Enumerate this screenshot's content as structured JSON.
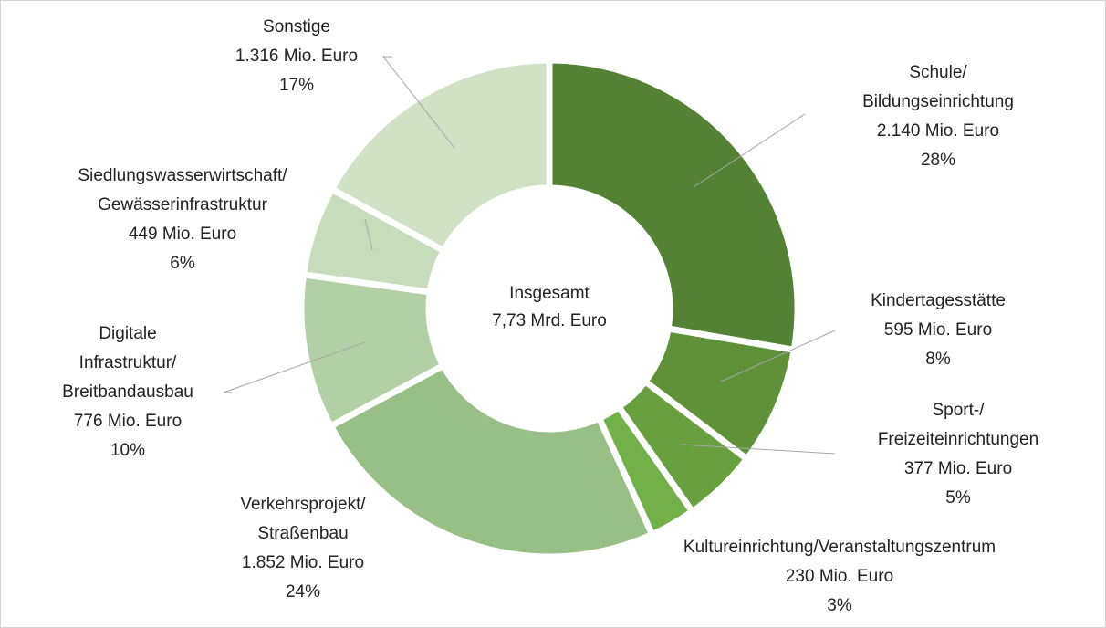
{
  "chart_data": {
    "type": "donut",
    "categories": [
      [
        "Schule/",
        "Bildungseinrichtung"
      ],
      [
        "Kindertagesstätte"
      ],
      [
        "Sport-/",
        "Freizeiteinrichtungen"
      ],
      [
        "Kultureinrichtung/Veranstaltungszentrum"
      ],
      [
        "Verkehrsprojekt/",
        "Straßenbau"
      ],
      [
        "Digitale",
        "Infrastruktur/",
        "Breitbandausbau"
      ],
      [
        "Siedlungswasserwirtschaft/",
        "Gewässerinfrastruktur"
      ],
      [
        "Sonstige"
      ]
    ],
    "values": [
      2140,
      595,
      377,
      230,
      1852,
      776,
      449,
      1316
    ],
    "value_labels": [
      "2.140 Mio. Euro",
      "595 Mio. Euro",
      "377 Mio. Euro",
      "230 Mio. Euro",
      "1.852 Mio. Euro",
      "776 Mio. Euro",
      "449 Mio. Euro",
      "1.316 Mio. Euro"
    ],
    "shares": [
      28,
      8,
      5,
      3,
      24,
      10,
      6,
      17
    ],
    "share_labels": [
      "28%",
      "8%",
      "5%",
      "3%",
      "24%",
      "10%",
      "6%",
      "17%"
    ],
    "colors": [
      "#548235",
      "#5e9138",
      "#68a040",
      "#72b04a",
      "#98bf86",
      "#b3cfa5",
      "#c7dcbc",
      "#d0e1c6"
    ],
    "center_label": [
      "Insgesamt",
      "7,73 Mrd. Euro"
    ]
  }
}
